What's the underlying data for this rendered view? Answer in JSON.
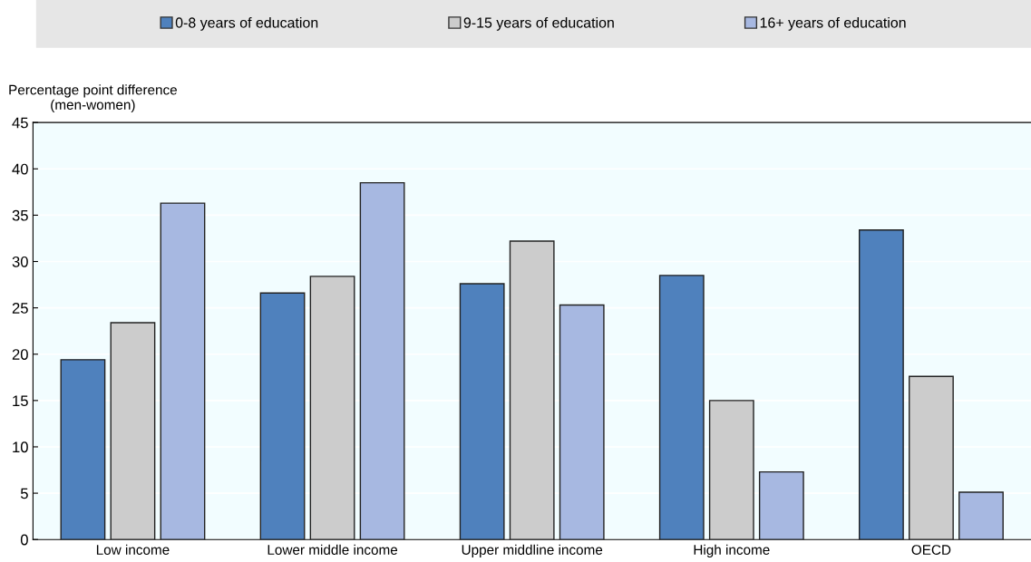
{
  "chart_data": {
    "type": "bar",
    "ylabel": "Percentage point difference\n(men-women)",
    "categories": [
      "Low income",
      "Lower middle income",
      "Upper middline income",
      "High income",
      "OECD"
    ],
    "series": [
      {
        "name": "0-8 years of education",
        "color": "#4f81bd",
        "values": [
          19.4,
          26.6,
          27.6,
          28.5,
          33.4
        ]
      },
      {
        "name": "9-15 years of education",
        "color": "#cccccc",
        "values": [
          23.4,
          28.4,
          32.2,
          15.0,
          17.6
        ]
      },
      {
        "name": "16+ years of education",
        "color": "#a7b8e1",
        "values": [
          36.3,
          38.5,
          25.3,
          7.3,
          5.1
        ]
      }
    ],
    "ylim": [
      0,
      45
    ],
    "yticks": [
      0,
      5,
      10,
      15,
      20,
      25,
      30,
      35,
      40,
      45
    ],
    "grid": "y",
    "legend": "top"
  }
}
